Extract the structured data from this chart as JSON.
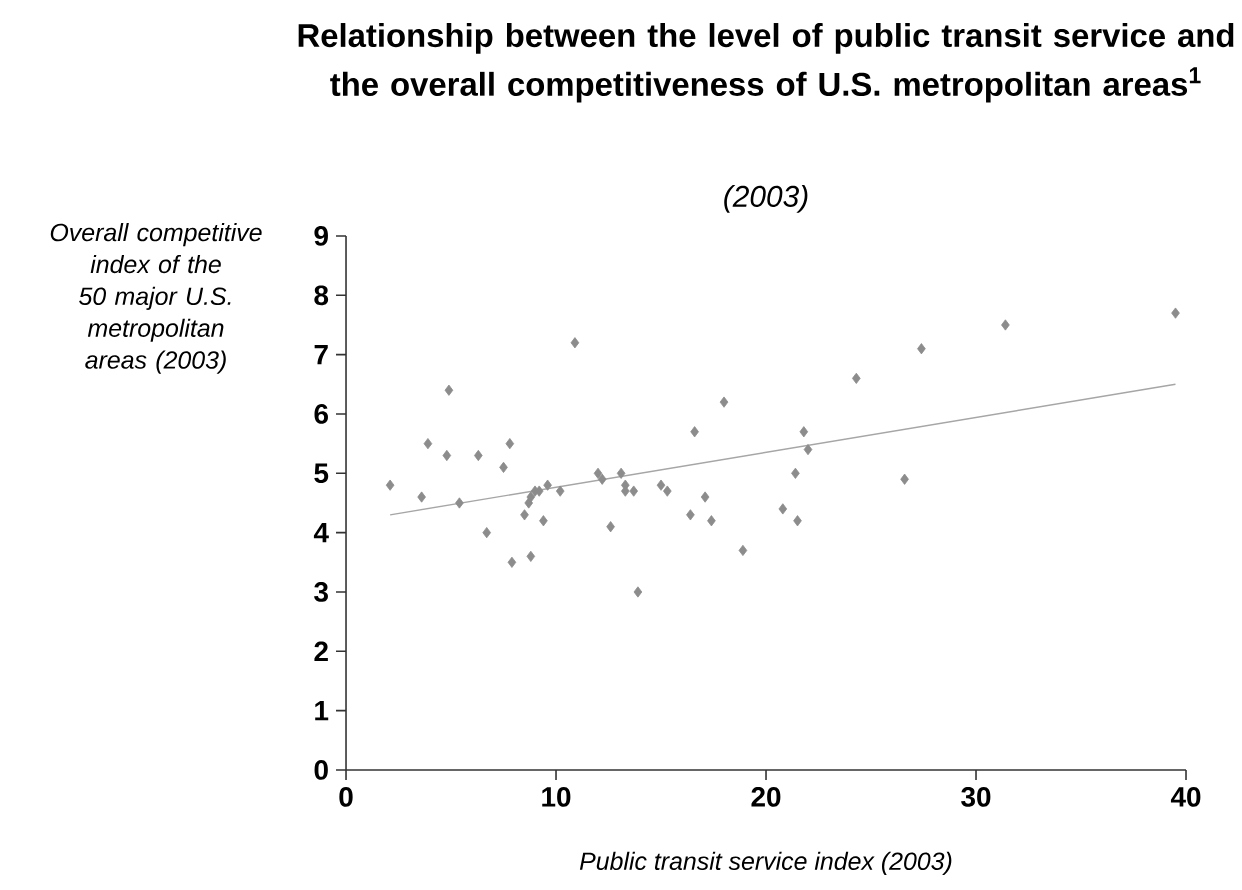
{
  "chart_data": {
    "type": "scatter",
    "title": "Relationship between the level of public transit service and the overall competitiveness of U.S. metropolitan areas$^{1}$",
    "subtitle": "(2003)",
    "xlabel": "Public transit service index (2003)",
    "ylabel": "Overall competitive index of the 50 major U.S. metropolitan areas (2003)",
    "xlim": [
      0,
      40
    ],
    "xticks": [
      0,
      10,
      20,
      30,
      40
    ],
    "ylim": [
      0,
      9
    ],
    "yticks": [
      0,
      1,
      2,
      3,
      4,
      5,
      6,
      7,
      8,
      9
    ],
    "series": [
      {
        "marker": "diamond",
        "color": "#8c8c8c",
        "x": [
          2.1,
          3.6,
          3.9,
          4.8,
          4.9,
          5.4,
          6.3,
          6.7,
          7.5,
          7.8,
          7.9,
          8.8,
          8.5,
          8.7,
          8.8,
          9.0,
          9.2,
          9.4,
          9.6,
          10.2,
          10.9,
          12.0,
          12.2,
          12.6,
          13.1,
          13.3,
          13.3,
          13.7,
          13.9,
          15.0,
          15.3,
          16.4,
          16.6,
          17.1,
          17.4,
          18.0,
          18.9,
          20.8,
          21.4,
          21.5,
          21.8,
          22.0,
          24.3,
          26.6,
          27.4,
          31.4,
          39.5
        ],
        "values": [
          4.8,
          4.6,
          5.5,
          5.3,
          6.4,
          4.5,
          5.3,
          4.0,
          5.1,
          5.5,
          3.5,
          3.6,
          4.3,
          4.5,
          4.6,
          4.7,
          4.7,
          4.2,
          4.8,
          4.7,
          7.2,
          5.0,
          4.9,
          4.1,
          5.0,
          4.8,
          4.7,
          4.7,
          3.0,
          4.8,
          4.7,
          4.3,
          5.7,
          4.6,
          4.2,
          6.2,
          3.7,
          4.4,
          5.0,
          4.2,
          5.7,
          5.4,
          6.6,
          4.9,
          7.1,
          7.5,
          7.7
        ]
      },
      {
        "type": "line",
        "color": "#a6a6a6",
        "x": [
          2.1,
          39.5
        ],
        "values": [
          4.3,
          6.5
        ]
      }
    ]
  }
}
